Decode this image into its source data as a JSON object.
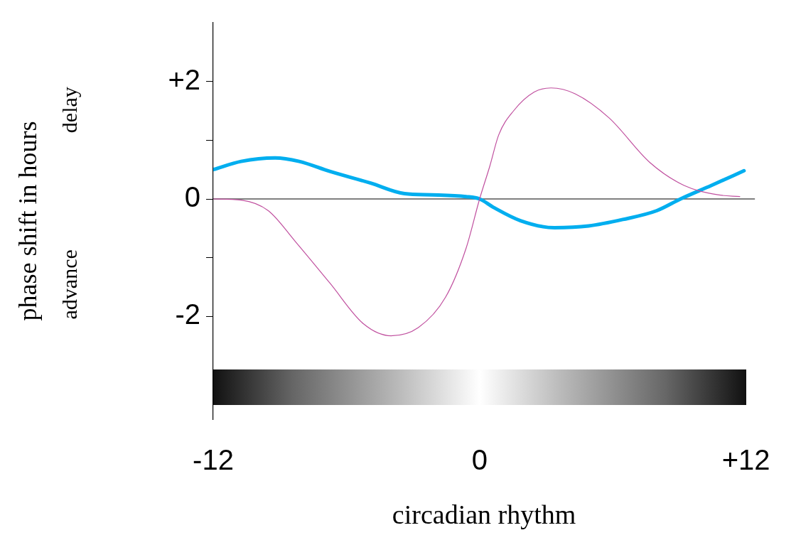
{
  "chart_data": {
    "type": "line",
    "xlabel": "circadian rhythm",
    "ylabel": "phase shift in hours",
    "annotations": [
      "delay",
      "advance"
    ],
    "xlim": [
      -12,
      12.4
    ],
    "xticks": [
      -12,
      0,
      {
        "value": 12,
        "label": "+12"
      }
    ],
    "ylim": [
      -3.75,
      3
    ],
    "yticks": [
      -2,
      {
        "value": -1,
        "label": null
      },
      0,
      {
        "value": 1,
        "label": null
      },
      {
        "value": 2,
        "label": "+2"
      }
    ],
    "grid": false,
    "legend": false,
    "marker": "none",
    "line_style": "solid",
    "ref_lines": [
      {
        "axis": "y",
        "value": 0,
        "color": "#000000"
      }
    ],
    "series": [
      {
        "color": "#c0509f",
        "x": [
          -12,
          -10.74,
          -9.52,
          -8.29,
          -6.75,
          -5.22,
          -3.99,
          -2.76,
          -1.53,
          -0.61,
          0,
          0.46,
          0.86,
          1.53,
          2.46,
          3.22,
          4.3,
          5.83,
          7.67,
          9.21,
          10.74,
          11.72
        ],
        "values": [
          0,
          -0.02,
          -0.2,
          -0.73,
          -1.43,
          -2.13,
          -2.33,
          -2.19,
          -1.67,
          -0.84,
          0,
          0.56,
          1.09,
          1.5,
          1.82,
          1.89,
          1.79,
          1.38,
          0.62,
          0.23,
          0.07,
          0.04
        ]
      },
      {
        "color": "#00aeef",
        "x": [
          -12,
          -10.74,
          -9.21,
          -8.13,
          -6.75,
          -4.91,
          -3.38,
          -2.15,
          -0.61,
          0,
          0.61,
          1.84,
          3.38,
          4.91,
          6.45,
          7.98,
          9.05,
          10.44,
          11.91
        ],
        "values": [
          0.5,
          0.64,
          0.7,
          0.64,
          0.47,
          0.27,
          0.09,
          0.07,
          0.04,
          0,
          -0.14,
          -0.37,
          -0.49,
          -0.46,
          -0.35,
          -0.2,
          0,
          0.23,
          0.48
        ]
      }
    ]
  }
}
